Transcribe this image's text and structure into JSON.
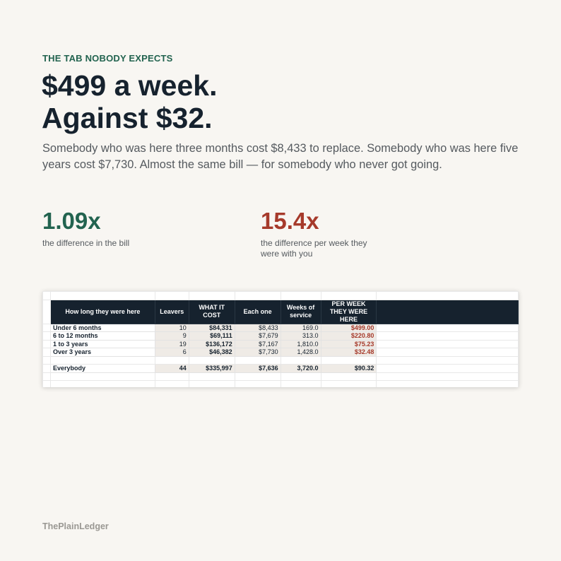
{
  "eyebrow": "THE TAB NOBODY EXPECTS",
  "headline": {
    "line1": "$499 a week.",
    "line2": "Against $32."
  },
  "lede": "Somebody who was here three months cost $8,433 to replace. Somebody who was here five years cost $7,730. Almost the same bill — for somebody who never got going.",
  "stats": [
    {
      "value": "1.09x",
      "label": "the difference in the bill",
      "color": "#22634f"
    },
    {
      "value": "15.4x",
      "label": "the difference per week they were with you",
      "color": "#a63a2b"
    }
  ],
  "table": {
    "headers": [
      "How long they were here",
      "Leavers",
      "WHAT IT COST",
      "Each one",
      "Weeks of service",
      "PER WEEK THEY WERE HERE"
    ],
    "rows": [
      {
        "label": "Under 6 months",
        "leavers": "10",
        "cost": "$84,331",
        "each": "$8,433",
        "weeks": "169.0",
        "per_week": "$499.00"
      },
      {
        "label": "6 to 12 months",
        "leavers": "9",
        "cost": "$69,111",
        "each": "$7,679",
        "weeks": "313.0",
        "per_week": "$220.80"
      },
      {
        "label": "1 to 3 years",
        "leavers": "19",
        "cost": "$136,172",
        "each": "$7,167",
        "weeks": "1,810.0",
        "per_week": "$75.23"
      },
      {
        "label": "Over 3 years",
        "leavers": "6",
        "cost": "$46,382",
        "each": "$7,730",
        "weeks": "1,428.0",
        "per_week": "$32.48"
      }
    ],
    "total": {
      "label": "Everybody",
      "leavers": "44",
      "cost": "$335,997",
      "each": "$7,636",
      "weeks": "3,720.0",
      "per_week": "$90.32"
    }
  },
  "footer": "ThePlainLedger"
}
